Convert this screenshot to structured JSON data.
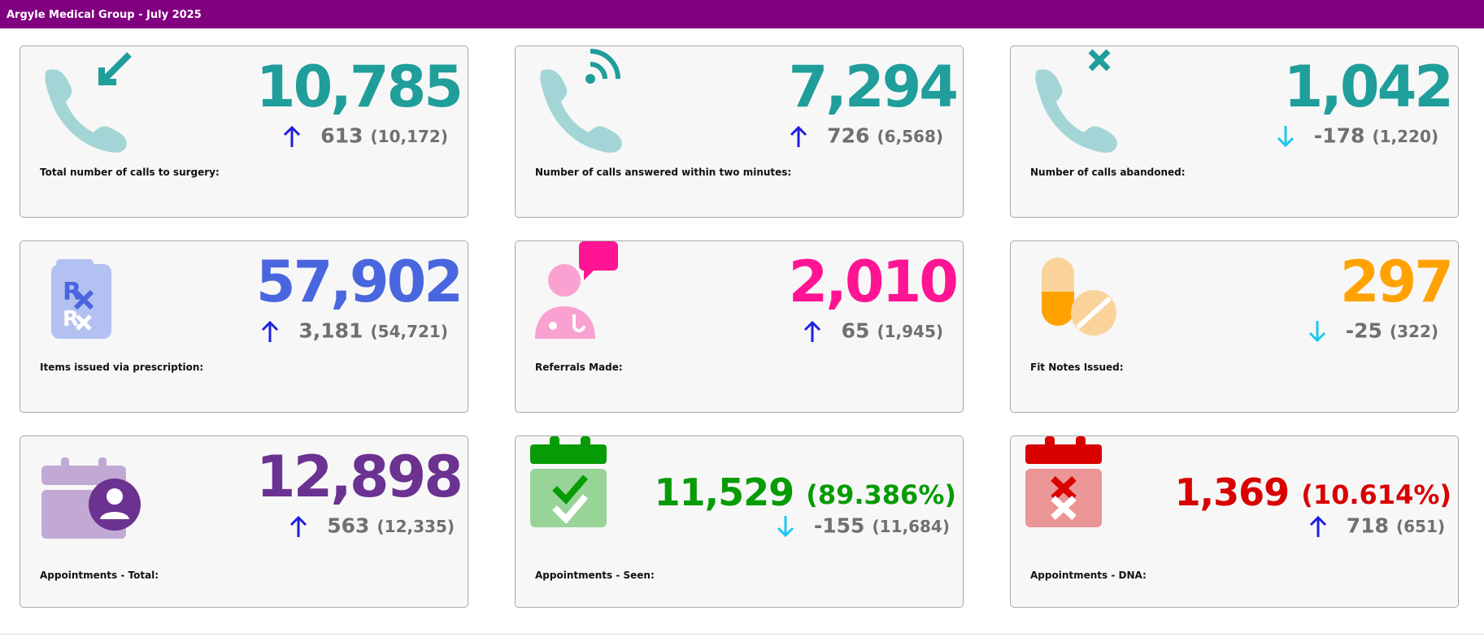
{
  "header": {
    "title": "Argyle Medical Group - July 2025"
  },
  "colors": {
    "header_bg": "#80007f",
    "teal": "#1f9e9b",
    "teal_light": "#a3d5d6",
    "blue": "#4a66de",
    "pink": "#ff1493",
    "orange": "#ffa200",
    "purple": "#6b3291",
    "green": "#079b06",
    "red": "#d90000",
    "arrow_up": "#1f1fe0",
    "arrow_down": "#1cc7f0",
    "muted": "#707070"
  },
  "cards": [
    {
      "label": "Total number of calls to surgery:",
      "value": "10,785",
      "change": "613",
      "previous": "(10,172)",
      "trend": "up",
      "icon": "incoming-call-icon",
      "color": "#1f9e9b"
    },
    {
      "label": "Number of calls answered within two minutes:",
      "value": "7,294",
      "change": "726",
      "previous": "(6,568)",
      "trend": "up",
      "icon": "phone-signal-icon",
      "color": "#1f9e9b"
    },
    {
      "label": "Number of calls abandoned:",
      "value": "1,042",
      "change": "-178",
      "previous": "(1,220)",
      "trend": "down",
      "icon": "missed-call-icon",
      "color": "#1f9e9b"
    },
    {
      "label": "Items issued via prescription:",
      "value": "57,902",
      "change": "3,181",
      "previous": "(54,721)",
      "trend": "up",
      "icon": "prescription-icon",
      "color": "#4a66de"
    },
    {
      "label": "Referrals Made:",
      "value": "2,010",
      "change": "65",
      "previous": "(1,945)",
      "trend": "up",
      "icon": "doctor-chat-icon",
      "color": "#ff1493"
    },
    {
      "label": "Fit Notes Issued:",
      "value": "297",
      "change": "-25",
      "previous": "(322)",
      "trend": "down",
      "icon": "pills-icon",
      "color": "#ffa200"
    },
    {
      "label": "Appointments - Total:",
      "value": "12,898",
      "percent": "",
      "change": "563",
      "previous": "(12,335)",
      "trend": "up",
      "icon": "calendar-user-icon",
      "color": "#6b3291"
    },
    {
      "label": "Appointments - Seen:",
      "value": "11,529",
      "percent": "(89.386%)",
      "change": "-155",
      "previous": "(11,684)",
      "trend": "down",
      "icon": "calendar-check-icon",
      "color": "#079b06"
    },
    {
      "label": "Appointments - DNA:",
      "value": "1,369",
      "percent": "(10.614%)",
      "change": "718",
      "previous": "(651)",
      "trend": "up",
      "icon": "calendar-cross-icon",
      "color": "#d90000"
    }
  ]
}
